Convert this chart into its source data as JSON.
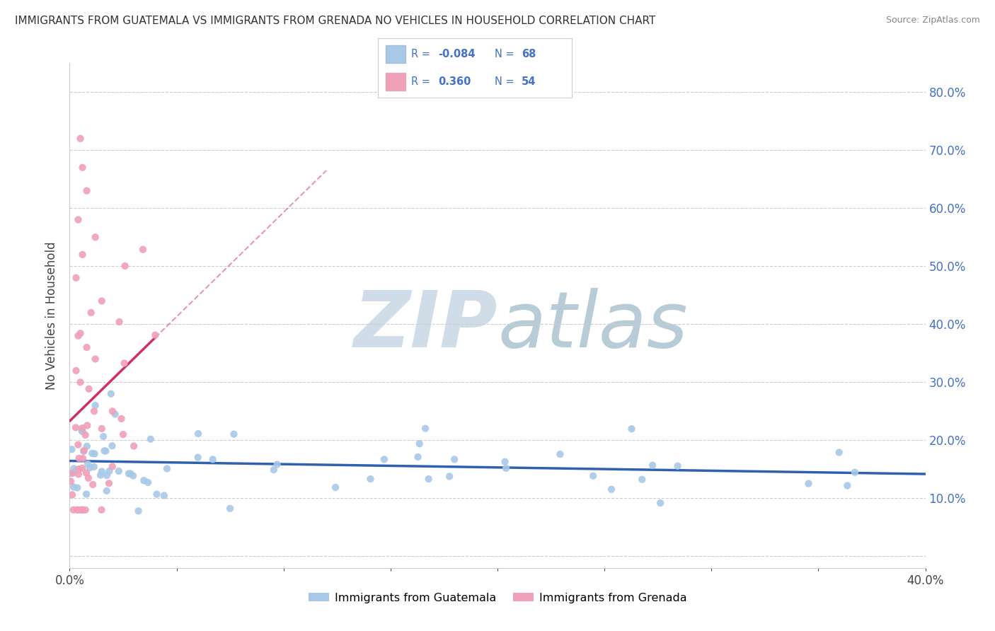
{
  "title": "IMMIGRANTS FROM GUATEMALA VS IMMIGRANTS FROM GRENADA NO VEHICLES IN HOUSEHOLD CORRELATION CHART",
  "source": "Source: ZipAtlas.com",
  "ylabel": "No Vehicles in Household",
  "x_min": 0.0,
  "x_max": 0.4,
  "y_min": -0.02,
  "y_max": 0.85,
  "y_ticks": [
    0.0,
    0.1,
    0.2,
    0.3,
    0.4,
    0.5,
    0.6,
    0.7,
    0.8
  ],
  "y_tick_labels_right": [
    "",
    "10.0%",
    "20.0%",
    "30.0%",
    "40.0%",
    "50.0%",
    "60.0%",
    "70.0%",
    "80.0%"
  ],
  "guatemala_color": "#a8c8e8",
  "grenada_color": "#f0a0b8",
  "guatemala_line_color": "#3060b0",
  "grenada_line_color": "#d03060",
  "watermark_color": "#d0dce8",
  "background_color": "#ffffff",
  "legend_r1": "-0.084",
  "legend_n1": "68",
  "legend_r2": "0.360",
  "legend_n2": "54",
  "legend_color1": "#a8c8e8",
  "legend_color2": "#f0a0b8",
  "legend_text_color": "#4472c4"
}
